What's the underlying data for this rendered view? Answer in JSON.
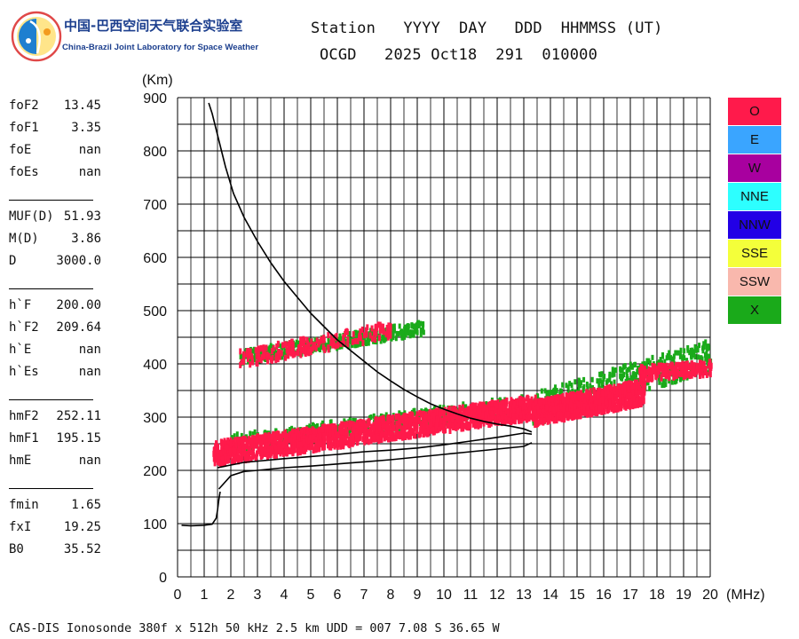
{
  "header": {
    "logo_cn": "中国-巴西空间天气联合实验室",
    "logo_en": "China-Brazil Joint Laboratory for Space Weather",
    "line1": "Station   YYYY  DAY   DDD  HHMMSS (UT)",
    "line2": "OCGD   2025 Oct18  291  010000"
  },
  "params": [
    {
      "name": "foF2",
      "value": "13.45"
    },
    {
      "name": "foF1",
      "value": "3.35"
    },
    {
      "name": "foE",
      "value": "nan"
    },
    {
      "name": "foEs",
      "value": "nan"
    },
    {
      "name": "MUF(D)",
      "value": "51.93"
    },
    {
      "name": "M(D)",
      "value": "3.86"
    },
    {
      "name": "D",
      "value": "3000.0"
    },
    {
      "name": "h`F",
      "value": "200.00"
    },
    {
      "name": "h`F2",
      "value": "209.64"
    },
    {
      "name": "h`E",
      "value": "nan"
    },
    {
      "name": "h`Es",
      "value": "nan"
    },
    {
      "name": "hmF2",
      "value": "252.11"
    },
    {
      "name": "hmF1",
      "value": "195.15"
    },
    {
      "name": "hmE",
      "value": "nan"
    },
    {
      "name": "fmin",
      "value": "1.65"
    },
    {
      "name": "fxI",
      "value": "19.25"
    },
    {
      "name": "B0",
      "value": "35.52"
    }
  ],
  "legend": [
    {
      "label": "O",
      "color": "#ff1a4b"
    },
    {
      "label": "E",
      "color": "#3aa5ff"
    },
    {
      "label": "W",
      "color": "#a8009f"
    },
    {
      "label": "NNE",
      "color": "#2dffff"
    },
    {
      "label": "NNW",
      "color": "#2200e6"
    },
    {
      "label": "SSE",
      "color": "#f4ff3a"
    },
    {
      "label": "SSW",
      "color": "#f9b8ad"
    },
    {
      "label": "X",
      "color": "#1aaa1a"
    }
  ],
  "footer": "CAS-DIS Ionosonde 380f x 512h 50 kHz 2.5 km UDD = 007 7.08 S 36.65 W",
  "chart_data": {
    "type": "scatter",
    "ylabel": "(Km)",
    "xlabel": "(MHz)",
    "xlim": [
      0,
      20
    ],
    "ylim": [
      0,
      900
    ],
    "xticks": [
      "0",
      "1",
      "2",
      "3",
      "4",
      "5",
      "6",
      "7",
      "8",
      "9",
      "10",
      "11",
      "12",
      "13",
      "14",
      "15",
      "16",
      "17",
      "18",
      "19",
      "20"
    ],
    "yticks": [
      "0",
      "100",
      "200",
      "300",
      "400",
      "500",
      "600",
      "700",
      "800",
      "900"
    ],
    "grid": true,
    "profile": {
      "x": [
        1.17,
        1.3,
        1.5,
        1.8,
        2.1,
        2.5,
        3.0,
        3.5,
        4.0,
        4.5,
        5.0,
        5.5,
        6.0,
        6.5,
        7.0,
        7.5,
        8.0,
        8.5,
        9.0,
        9.5,
        10.0,
        10.5,
        11.0,
        11.5,
        12.0,
        12.5,
        13.0,
        13.3
      ],
      "y": [
        890,
        870,
        830,
        770,
        720,
        675,
        630,
        590,
        555,
        525,
        495,
        470,
        445,
        425,
        405,
        385,
        368,
        352,
        338,
        325,
        315,
        306,
        298,
        292,
        287,
        283,
        278,
        272
      ]
    },
    "trace_upper": {
      "x": [
        1.5,
        2.5,
        4,
        5,
        6,
        7,
        8,
        9,
        10,
        11,
        12,
        13,
        13.3
      ],
      "y": [
        205,
        215,
        222,
        226,
        230,
        235,
        238,
        242,
        248,
        255,
        262,
        270,
        268
      ]
    },
    "trace_lower": {
      "x": [
        1.55,
        2,
        2.5,
        3,
        4,
        5,
        6,
        7,
        8,
        9,
        10,
        11,
        12,
        13,
        13.3
      ],
      "y": [
        165,
        190,
        198,
        200,
        205,
        208,
        212,
        216,
        220,
        225,
        230,
        235,
        240,
        245,
        252
      ]
    },
    "bottom_trace": {
      "x": [
        0.15,
        0.5,
        1.0,
        1.3,
        1.45,
        1.5,
        1.55,
        1.6
      ],
      "y": [
        97,
        96,
        97,
        99,
        110,
        125,
        145,
        160
      ]
    },
    "o_clusters": [
      {
        "x": [
          1.3,
          13.4
        ],
        "y": [
          198,
          285
        ],
        "dy": [
          18,
          60
        ]
      },
      {
        "x": [
          13.3,
          17.5
        ],
        "y": [
          280,
          320
        ],
        "dy": [
          10,
          55
        ]
      },
      {
        "x": [
          17.3,
          20.0
        ],
        "y": [
          375,
          385
        ],
        "dy": [
          0,
          25
        ]
      },
      {
        "x": [
          2.3,
          8.0
        ],
        "y": [
          400,
          455
        ],
        "dy": [
          0,
          30
        ]
      }
    ],
    "x_clusters": [
      {
        "x": [
          1.7,
          13.0
        ],
        "y": [
          225,
          300
        ],
        "dy": [
          10,
          45
        ]
      },
      {
        "x": [
          2.3,
          9.2
        ],
        "y": [
          405,
          460
        ],
        "dy": [
          0,
          25
        ]
      },
      {
        "x": [
          13.3,
          20.0
        ],
        "y": [
          290,
          390
        ],
        "dy": [
          0,
          60
        ]
      }
    ]
  }
}
